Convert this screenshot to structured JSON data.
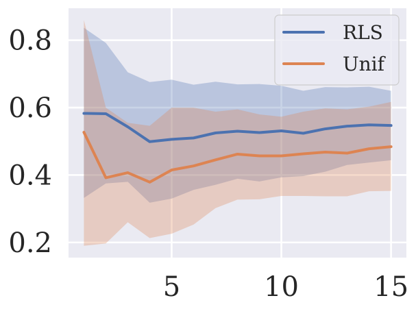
{
  "chart_data": {
    "type": "line",
    "title": "",
    "xlabel": "",
    "ylabel": "",
    "xlim": [
      0.3,
      15.7
    ],
    "ylim": [
      0.155,
      0.895
    ],
    "x_ticks": [
      5,
      10,
      15
    ],
    "y_ticks": [
      0.2,
      0.4,
      0.6,
      0.8
    ],
    "x_tick_labels": [
      "5",
      "10",
      "15"
    ],
    "y_tick_labels": [
      "0.2",
      "0.4",
      "0.6",
      "0.8"
    ],
    "grid": true,
    "legend_position": "top-right",
    "x": [
      1,
      2,
      3,
      4,
      5,
      6,
      7,
      8,
      9,
      10,
      11,
      12,
      13,
      14,
      15
    ],
    "series": [
      {
        "name": "RLS",
        "color": "#4c72b0",
        "band_color": "#a5b8da",
        "values": [
          0.583,
          0.582,
          0.543,
          0.499,
          0.506,
          0.51,
          0.525,
          0.53,
          0.526,
          0.531,
          0.524,
          0.537,
          0.545,
          0.549,
          0.547
        ],
        "upper": [
          0.837,
          0.792,
          0.705,
          0.676,
          0.683,
          0.668,
          0.677,
          0.669,
          0.67,
          0.665,
          0.65,
          0.661,
          0.66,
          0.662,
          0.65
        ],
        "lower": [
          0.332,
          0.375,
          0.38,
          0.318,
          0.33,
          0.356,
          0.371,
          0.389,
          0.381,
          0.393,
          0.397,
          0.41,
          0.43,
          0.437,
          0.444
        ]
      },
      {
        "name": "Unif",
        "color": "#dd8452",
        "band_color": "#edc2a8",
        "values": [
          0.527,
          0.392,
          0.407,
          0.379,
          0.415,
          0.427,
          0.445,
          0.462,
          0.457,
          0.457,
          0.463,
          0.468,
          0.465,
          0.478,
          0.484
        ],
        "upper": [
          0.86,
          0.6,
          0.555,
          0.546,
          0.6,
          0.6,
          0.588,
          0.595,
          0.58,
          0.573,
          0.588,
          0.598,
          0.595,
          0.603,
          0.617
        ],
        "lower": [
          0.19,
          0.197,
          0.26,
          0.213,
          0.226,
          0.253,
          0.302,
          0.327,
          0.328,
          0.338,
          0.338,
          0.337,
          0.337,
          0.352,
          0.353
        ]
      }
    ],
    "background_color": "#eaeaf2",
    "grid_color": "#ffffff"
  }
}
